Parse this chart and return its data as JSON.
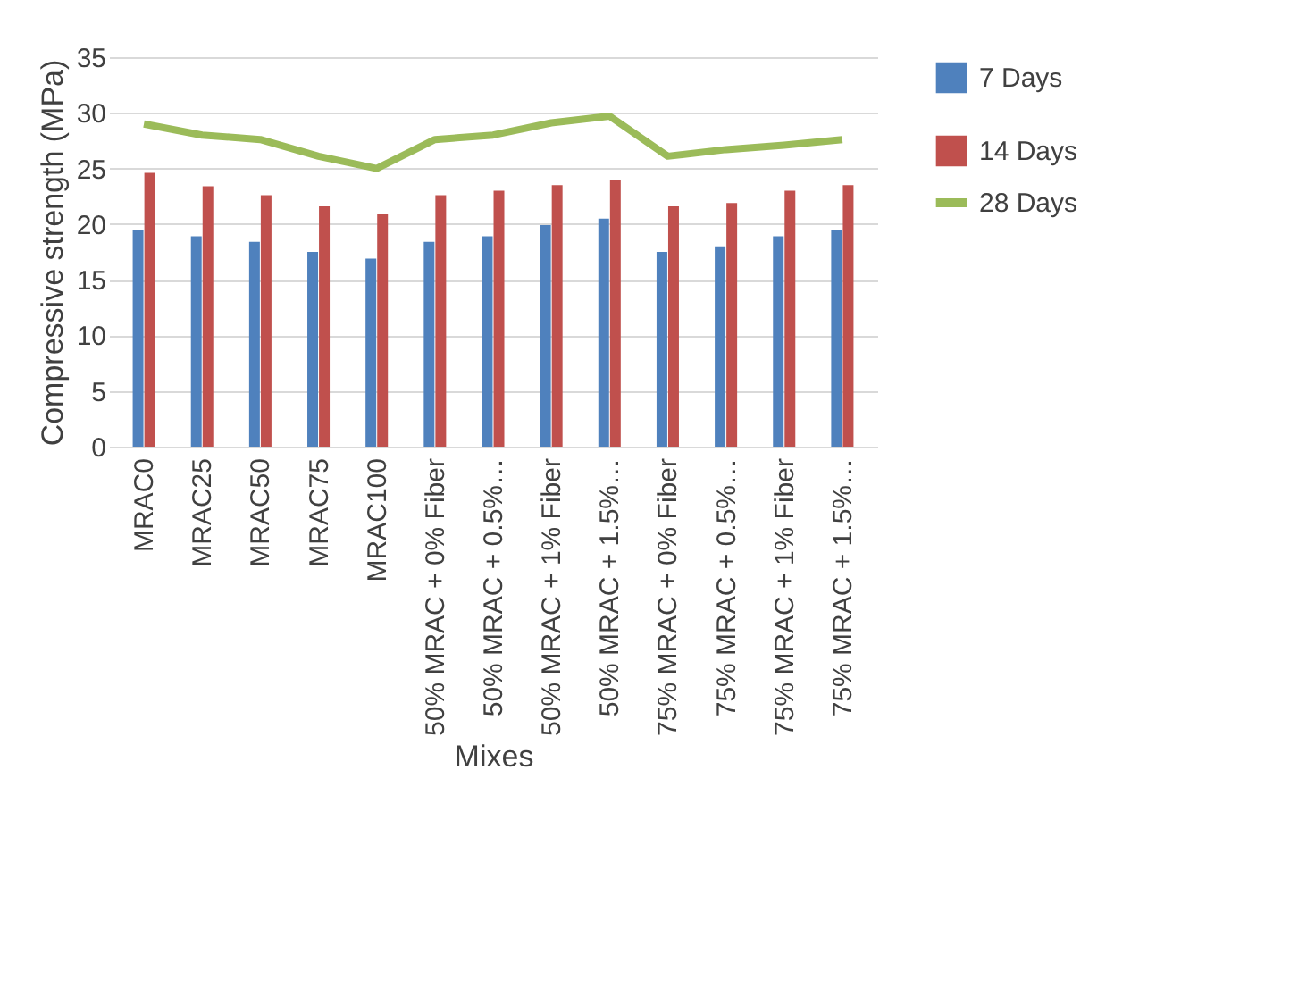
{
  "chart_data": {
    "type": "bar",
    "xlabel": "Mixes",
    "ylabel": "Compressive strength (MPa)",
    "categories": [
      "MRAC0",
      "MRAC25",
      "MRAC50",
      "MRAC75",
      "MRAC100",
      "50% MRAC + 0% Fiber",
      "50% MRAC + 0.5%…",
      "50% MRAC + 1% Fiber",
      "50% MRAC + 1.5%…",
      "75% MRAC + 0% Fiber",
      "75% MRAC + 0.5%…",
      "75% MRAC + 1% Fiber",
      "75% MRAC + 1.5%…"
    ],
    "series": [
      {
        "name": "7 Days",
        "color": "#4f81bd",
        "values": [
          19.5,
          18.9,
          18.4,
          17.5,
          16.9,
          18.4,
          18.9,
          19.9,
          20.5,
          17.5,
          18.0,
          18.9,
          19.5
        ]
      },
      {
        "name": "14 Days",
        "color": "#c0504d",
        "values": [
          24.6,
          23.4,
          22.6,
          21.6,
          20.9,
          22.6,
          23.0,
          23.5,
          24.0,
          21.6,
          21.9,
          23.0,
          23.5
        ]
      },
      {
        "name": "28 Days",
        "type": "line",
        "color": "#9bbb59",
        "values": [
          29.0,
          28.0,
          27.6,
          26.1,
          25.0,
          27.6,
          28.0,
          29.1,
          29.7,
          26.1,
          26.7,
          27.1,
          27.6
        ]
      }
    ],
    "ylim": [
      0,
      35
    ],
    "yticks": [
      0,
      5,
      10,
      15,
      20,
      25,
      30,
      35
    ],
    "grid": "y",
    "legend": "right"
  }
}
